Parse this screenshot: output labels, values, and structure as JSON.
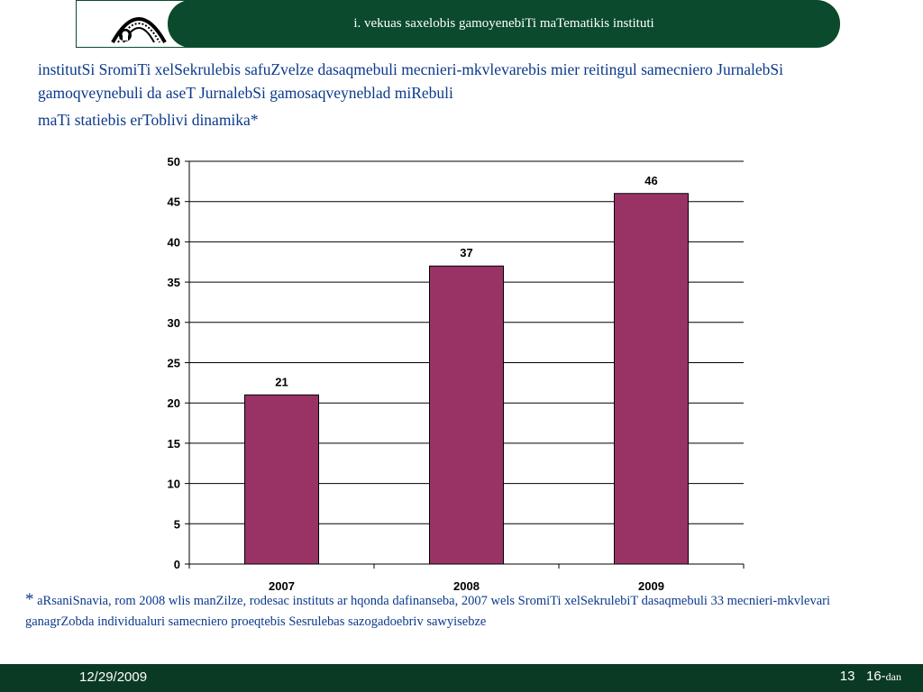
{
  "header": {
    "title": "i. vekuas saxelobis gamoyenebiTi maTematikis instituti"
  },
  "content": {
    "heading": "institutSi SromiTi xelSekrulebis safuZvelze dasaqmebuli mecnieri-mkvlevarebis mier reitingul samecniero JurnalebSi gamoqveynebuli da aseT JurnalebSi gamosaqveyneblad miRebuli",
    "subheading": "maTi statiebis erToblivi dinamika*"
  },
  "footnote": {
    "star": "*",
    "text": " aRsaniSnavia, rom 2008 wlis manZilze, rodesac instituts ar hqonda dafinanseba, 2007 wels SromiTi xelSekrulebiT dasaqmebuli 33 mecnieri-mkvlevari ganagrZobda individualuri samecniero proeqtebis Sesrulebas sazogadoebriv sawyisebze"
  },
  "footer": {
    "date": "12/29/2009",
    "page": "13",
    "of": "16-",
    "of_suffix": "dan"
  },
  "colors": {
    "bar": "#993366",
    "header_bg": "#0b4a2c",
    "footer_bg": "#0b3a24",
    "text_blue": "#0b3a8c"
  },
  "icons": {
    "logo": "institute-logo-icon"
  },
  "chart_data": {
    "type": "bar",
    "categories": [
      "2007",
      "2008",
      "2009"
    ],
    "values": [
      21,
      37,
      46
    ],
    "title": "",
    "xlabel": "",
    "ylabel": "",
    "ylim": [
      0,
      50
    ],
    "yticks": [
      0,
      5,
      10,
      15,
      20,
      25,
      30,
      35,
      40,
      45,
      50
    ],
    "data_labels": true,
    "grid": true,
    "legend": "none"
  }
}
